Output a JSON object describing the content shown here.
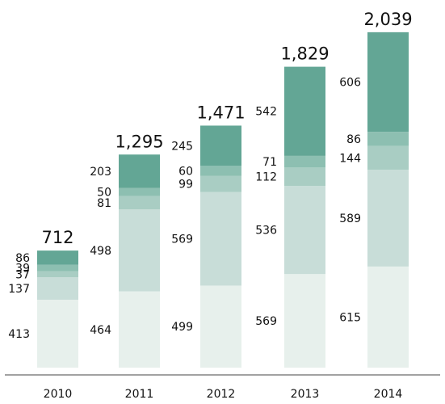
{
  "chart_data": {
    "type": "bar",
    "stacked": true,
    "categories": [
      "2010",
      "2011",
      "2012",
      "2013",
      "2014"
    ],
    "totals": [
      "712",
      "1,295",
      "1,471",
      "1,829",
      "2,039"
    ],
    "series": [
      {
        "values": [
          413,
          464,
          499,
          569,
          615
        ],
        "color": "#e7f0ec"
      },
      {
        "values": [
          137,
          498,
          569,
          536,
          589
        ],
        "color": "#c8ddd8"
      },
      {
        "values": [
          37,
          81,
          99,
          112,
          144
        ],
        "color": "#a9cdc3"
      },
      {
        "values": [
          39,
          50,
          60,
          71,
          86
        ],
        "color": "#8dbfb1"
      },
      {
        "values": [
          86,
          203,
          245,
          542,
          606
        ],
        "color": "#63a695"
      }
    ],
    "xlabel": "",
    "ylabel": "",
    "ylim": [
      0,
      2100
    ],
    "grid": false,
    "legend": "none"
  }
}
